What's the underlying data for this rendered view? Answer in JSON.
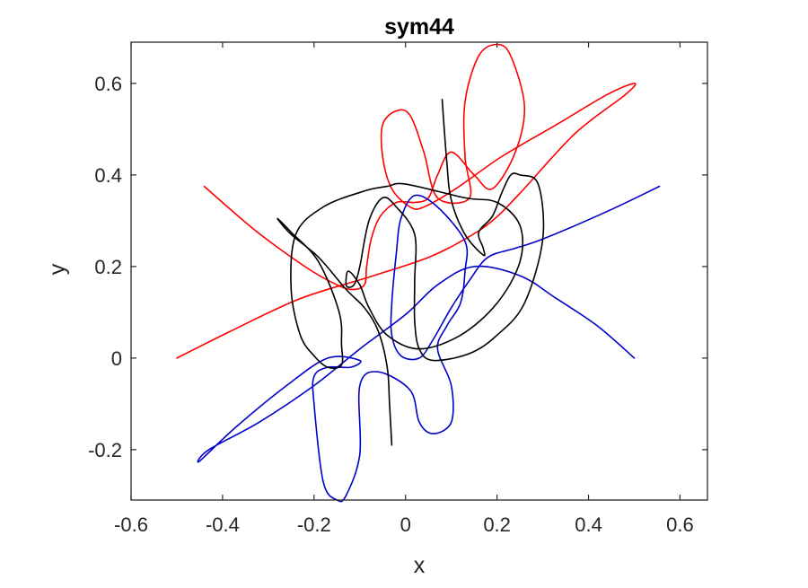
{
  "chart_data": {
    "type": "line",
    "title": "sym44",
    "xlabel": "x",
    "ylabel": "y",
    "xlim": [
      -0.6,
      0.66
    ],
    "ylim": [
      -0.31,
      0.69
    ],
    "xticks": [
      -0.6,
      -0.4,
      -0.2,
      0,
      0.2,
      0.4,
      0.6
    ],
    "xtick_labels": [
      "-0.6",
      "-0.4",
      "-0.2",
      "0",
      "0.2",
      "0.4",
      "0.6"
    ],
    "yticks": [
      -0.2,
      0,
      0.2,
      0.4,
      0.6
    ],
    "ytick_labels": [
      "-0.2",
      "0",
      "0.2",
      "0.4",
      "0.6"
    ],
    "grid": false,
    "box": true,
    "series": [
      {
        "color": "#ff0000",
        "points": [
          [
            -0.44,
            0.375
          ],
          [
            -0.33,
            0.28
          ],
          [
            -0.22,
            0.2
          ],
          [
            -0.16,
            0.165
          ],
          [
            -0.12,
            0.15
          ],
          [
            -0.09,
            0.16
          ],
          [
            -0.085,
            0.2
          ],
          [
            -0.075,
            0.26
          ],
          [
            -0.055,
            0.31
          ],
          [
            -0.02,
            0.34
          ],
          [
            0.02,
            0.34
          ],
          [
            0.05,
            0.35
          ],
          [
            0.07,
            0.4
          ],
          [
            0.1,
            0.45
          ],
          [
            0.15,
            0.4
          ],
          [
            0.19,
            0.37
          ],
          [
            0.24,
            0.45
          ],
          [
            0.26,
            0.55
          ],
          [
            0.23,
            0.66
          ],
          [
            0.2,
            0.685
          ],
          [
            0.16,
            0.66
          ],
          [
            0.13,
            0.56
          ],
          [
            0.13,
            0.44
          ],
          [
            0.14,
            0.35
          ],
          [
            0.07,
            0.35
          ],
          [
            0.04,
            0.45
          ],
          [
            0.01,
            0.53
          ],
          [
            -0.02,
            0.54
          ],
          [
            -0.05,
            0.51
          ],
          [
            -0.05,
            0.44
          ],
          [
            -0.03,
            0.37
          ],
          [
            0.01,
            0.33
          ],
          [
            0.04,
            0.33
          ],
          [
            0.11,
            0.37
          ],
          [
            0.21,
            0.44
          ],
          [
            0.33,
            0.51
          ],
          [
            0.44,
            0.575
          ],
          [
            0.5,
            0.6
          ],
          [
            0.48,
            0.575
          ],
          [
            0.37,
            0.49
          ],
          [
            0.25,
            0.36
          ],
          [
            0.19,
            0.3
          ],
          [
            0.13,
            0.26
          ],
          [
            0.05,
            0.22
          ],
          [
            -0.07,
            0.18
          ],
          [
            -0.23,
            0.13
          ],
          [
            -0.38,
            0.06
          ],
          [
            -0.5,
            0.0
          ]
        ]
      },
      {
        "color": "#0000cc",
        "points": [
          [
            0.555,
            0.375
          ],
          [
            0.44,
            0.32
          ],
          [
            0.3,
            0.26
          ],
          [
            0.24,
            0.24
          ],
          [
            0.18,
            0.22
          ],
          [
            0.14,
            0.17
          ],
          [
            0.1,
            0.11
          ],
          [
            0.06,
            0.04
          ],
          [
            0.03,
            0.0
          ],
          [
            -0.01,
            0.005
          ],
          [
            -0.03,
            0.05
          ],
          [
            -0.03,
            0.12
          ],
          [
            -0.02,
            0.23
          ],
          [
            -0.01,
            0.305
          ],
          [
            0.02,
            0.355
          ],
          [
            0.07,
            0.33
          ],
          [
            0.13,
            0.255
          ],
          [
            0.13,
            0.19
          ],
          [
            0.12,
            0.12
          ],
          [
            0.09,
            0.07
          ],
          [
            0.07,
            0.02
          ],
          [
            0.1,
            -0.06
          ],
          [
            0.1,
            -0.14
          ],
          [
            0.06,
            -0.165
          ],
          [
            0.03,
            -0.14
          ],
          [
            0.01,
            -0.07
          ],
          [
            -0.06,
            -0.03
          ],
          [
            -0.1,
            -0.06
          ],
          [
            -0.1,
            -0.21
          ],
          [
            -0.13,
            -0.3
          ],
          [
            -0.15,
            -0.31
          ],
          [
            -0.18,
            -0.27
          ],
          [
            -0.2,
            -0.1
          ],
          [
            -0.2,
            -0.04
          ],
          [
            -0.17,
            -0.02
          ],
          [
            -0.12,
            -0.02
          ],
          [
            -0.1,
            -0.005
          ],
          [
            -0.17,
            0.0
          ],
          [
            -0.26,
            -0.06
          ],
          [
            -0.37,
            -0.15
          ],
          [
            -0.45,
            -0.225
          ],
          [
            -0.43,
            -0.2
          ],
          [
            -0.32,
            -0.14
          ],
          [
            -0.2,
            -0.06
          ],
          [
            -0.1,
            0.02
          ],
          [
            0.0,
            0.095
          ],
          [
            0.07,
            0.16
          ],
          [
            0.15,
            0.2
          ],
          [
            0.25,
            0.18
          ],
          [
            0.33,
            0.13
          ],
          [
            0.42,
            0.07
          ],
          [
            0.5,
            0.0
          ]
        ]
      },
      {
        "color": "#000000",
        "points": [
          [
            0.08,
            0.565
          ],
          [
            0.09,
            0.43
          ],
          [
            0.1,
            0.345
          ],
          [
            0.13,
            0.27
          ],
          [
            0.17,
            0.225
          ],
          [
            0.17,
            0.24
          ],
          [
            0.16,
            0.275
          ],
          [
            0.19,
            0.31
          ],
          [
            0.21,
            0.36
          ],
          [
            0.23,
            0.4
          ],
          [
            0.25,
            0.4
          ],
          [
            0.29,
            0.38
          ],
          [
            0.3,
            0.26
          ],
          [
            0.26,
            0.12
          ],
          [
            0.2,
            0.05
          ],
          [
            0.14,
            0.01
          ],
          [
            0.06,
            -0.005
          ],
          [
            0.03,
            0.02
          ],
          [
            0.02,
            0.08
          ],
          [
            0.02,
            0.17
          ],
          [
            0.02,
            0.27
          ],
          [
            -0.02,
            0.33
          ],
          [
            -0.05,
            0.35
          ],
          [
            -0.08,
            0.3
          ],
          [
            -0.1,
            0.2
          ],
          [
            -0.11,
            0.165
          ],
          [
            -0.12,
            0.155
          ],
          [
            -0.13,
            0.16
          ],
          [
            -0.125,
            0.19
          ],
          [
            -0.1,
            0.16
          ],
          [
            -0.08,
            0.11
          ],
          [
            -0.04,
            0.05
          ],
          [
            0.03,
            0.02
          ],
          [
            0.12,
            0.05
          ],
          [
            0.2,
            0.12
          ],
          [
            0.25,
            0.21
          ],
          [
            0.25,
            0.29
          ],
          [
            0.2,
            0.34
          ],
          [
            0.13,
            0.35
          ],
          [
            0.0,
            0.38
          ],
          [
            -0.04,
            0.375
          ],
          [
            -0.09,
            0.365
          ],
          [
            -0.18,
            0.33
          ],
          [
            -0.24,
            0.27
          ],
          [
            -0.25,
            0.15
          ],
          [
            -0.23,
            0.05
          ],
          [
            -0.2,
            0.005
          ],
          [
            -0.17,
            -0.02
          ],
          [
            -0.14,
            -0.015
          ],
          [
            -0.14,
            0.03
          ],
          [
            -0.145,
            0.1
          ],
          [
            -0.19,
            0.21
          ],
          [
            -0.25,
            0.275
          ],
          [
            -0.28,
            0.305
          ],
          [
            -0.25,
            0.27
          ],
          [
            -0.19,
            0.22
          ],
          [
            -0.13,
            0.15
          ],
          [
            -0.09,
            0.11
          ],
          [
            -0.06,
            0.06
          ],
          [
            -0.04,
            -0.02
          ],
          [
            -0.035,
            -0.1
          ],
          [
            -0.03,
            -0.19
          ]
        ]
      }
    ]
  }
}
